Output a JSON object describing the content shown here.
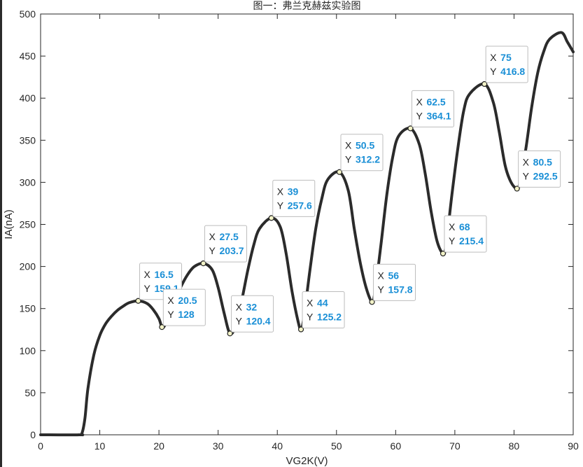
{
  "chart_data": {
    "type": "line",
    "title": "图一：弗兰克赫兹实验图",
    "xlabel": "VG2K(V)",
    "ylabel": "IA(nA)",
    "xlim": [
      0,
      90
    ],
    "ylim": [
      0,
      500
    ],
    "xticks": [
      0,
      10,
      20,
      30,
      40,
      50,
      60,
      70,
      80,
      90
    ],
    "yticks": [
      0,
      50,
      100,
      150,
      200,
      250,
      300,
      350,
      400,
      450,
      500
    ],
    "grid": false,
    "line_color": "#2b2b2b",
    "series": [
      {
        "x": [
          0,
          6.5,
          7,
          7.5,
          8,
          9,
          10,
          11,
          12,
          13,
          14,
          15,
          16.5,
          18,
          19,
          20,
          20.5,
          21,
          22,
          23,
          24,
          25,
          26,
          27.5,
          29,
          30,
          31,
          32,
          33,
          34,
          35,
          36,
          37,
          39,
          40.5,
          41.5,
          42.5,
          43.5,
          44,
          44.5,
          45.5,
          46.5,
          47.5,
          48.5,
          50.5,
          52,
          53,
          54,
          55,
          56,
          56.5,
          57.5,
          58.5,
          59.5,
          60.5,
          62.5,
          64,
          65,
          66,
          67,
          68,
          68.5,
          69.5,
          70.5,
          71.5,
          72.5,
          75,
          76.5,
          77.5,
          78.5,
          79.5,
          80.5,
          81,
          82,
          83,
          84,
          85,
          86,
          88,
          89,
          90
        ],
        "y": [
          0,
          0,
          2,
          20,
          55,
          95,
          118,
          132,
          141,
          148,
          153,
          157,
          159.1,
          156,
          149,
          138,
          128,
          130,
          145,
          165,
          180,
          192,
          200,
          203.7,
          196,
          175,
          145,
          120.4,
          130,
          160,
          195,
          225,
          245,
          257.6,
          247,
          215,
          170,
          135,
          125.2,
          140,
          195,
          245,
          280,
          303,
          312.2,
          290,
          245,
          205,
          175,
          157.8,
          170,
          225,
          285,
          330,
          355,
          364.1,
          345,
          310,
          265,
          230,
          215.4,
          225,
          285,
          340,
          385,
          405,
          416.8,
          395,
          360,
          320,
          300,
          292.5,
          300,
          340,
          390,
          430,
          455,
          470,
          478,
          467,
          455
        ]
      }
    ],
    "datatips": [
      {
        "x": "16.5",
        "y": "159.1"
      },
      {
        "x": "20.5",
        "y": "128"
      },
      {
        "x": "27.5",
        "y": "203.7"
      },
      {
        "x": "32",
        "y": "120.4"
      },
      {
        "x": "39",
        "y": "257.6"
      },
      {
        "x": "44",
        "y": "125.2"
      },
      {
        "x": "50.5",
        "y": "312.2"
      },
      {
        "x": "56",
        "y": "157.8"
      },
      {
        "x": "62.5",
        "y": "364.1"
      },
      {
        "x": "68",
        "y": "215.4"
      },
      {
        "x": "75",
        "y": "416.8"
      },
      {
        "x": "80.5",
        "y": "292.5"
      }
    ],
    "datatip_labels": {
      "x": "X",
      "y": "Y"
    }
  }
}
